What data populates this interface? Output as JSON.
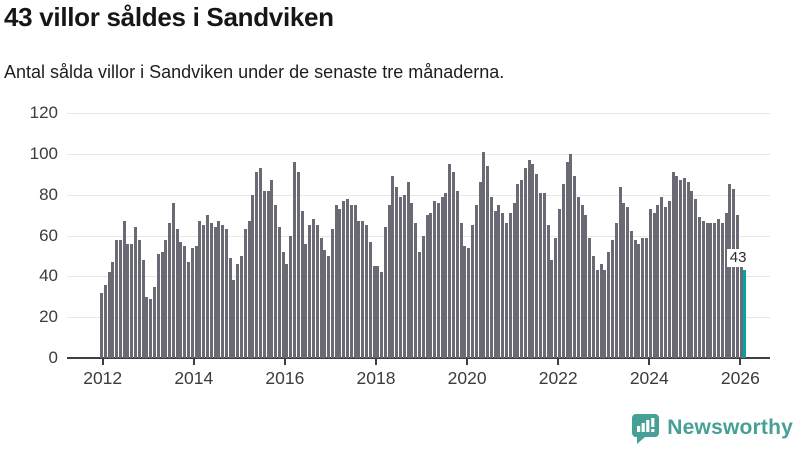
{
  "header": {
    "title": "43 villor såldes i Sandviken",
    "subtitle": "Antal sålda villor i Sandviken under de senaste tre månaderna."
  },
  "chart_data": {
    "type": "bar",
    "title": "43 villor såldes i Sandviken",
    "subtitle": "Antal sålda villor i Sandviken under de senaste tre månaderna.",
    "unit": "sålda villor per rullande tremånadersperiod",
    "frequency": "monthly",
    "x_start": "2012-01",
    "x_end": "2026-03",
    "ylim": [
      0,
      120
    ],
    "yticks": [
      0,
      20,
      40,
      60,
      80,
      100,
      120
    ],
    "xticks": [
      2012,
      2014,
      2016,
      2018,
      2020,
      2022,
      2024,
      2026
    ],
    "grid": true,
    "bar_color": "#6a6a74",
    "highlight_color": "#00a5a0",
    "highlight_index": 170,
    "highlight_label": "43",
    "values": [
      32,
      36,
      42,
      47,
      58,
      58,
      67,
      56,
      56,
      64,
      58,
      48,
      30,
      29,
      35,
      51,
      52,
      58,
      66,
      76,
      63,
      57,
      55,
      47,
      54,
      55,
      67,
      65,
      70,
      66,
      64,
      67,
      65,
      63,
      49,
      38,
      46,
      50,
      63,
      67,
      80,
      91,
      93,
      82,
      82,
      87,
      75,
      64,
      52,
      46,
      60,
      96,
      91,
      72,
      56,
      65,
      68,
      65,
      59,
      53,
      50,
      63,
      75,
      73,
      77,
      78,
      75,
      75,
      67,
      67,
      65,
      57,
      45,
      45,
      42,
      64,
      75,
      89,
      84,
      79,
      80,
      86,
      76,
      66,
      52,
      60,
      70,
      71,
      77,
      76,
      79,
      81,
      95,
      91,
      82,
      66,
      55,
      54,
      65,
      75,
      86,
      101,
      94,
      79,
      72,
      75,
      71,
      66,
      71,
      76,
      85,
      87,
      93,
      97,
      95,
      90,
      81,
      81,
      65,
      48,
      59,
      73,
      85,
      96,
      100,
      89,
      79,
      75,
      70,
      59,
      50,
      43,
      46,
      43,
      52,
      58,
      66,
      84,
      76,
      74,
      62,
      58,
      56,
      59,
      59,
      73,
      71,
      75,
      79,
      74,
      77,
      91,
      89,
      87,
      88,
      86,
      82,
      78,
      69,
      67,
      66,
      66,
      66,
      68,
      66,
      71,
      85,
      83,
      70,
      49,
      43
    ]
  },
  "footer": {
    "brand": "Newsworthy",
    "brand_color": "#47a096"
  }
}
